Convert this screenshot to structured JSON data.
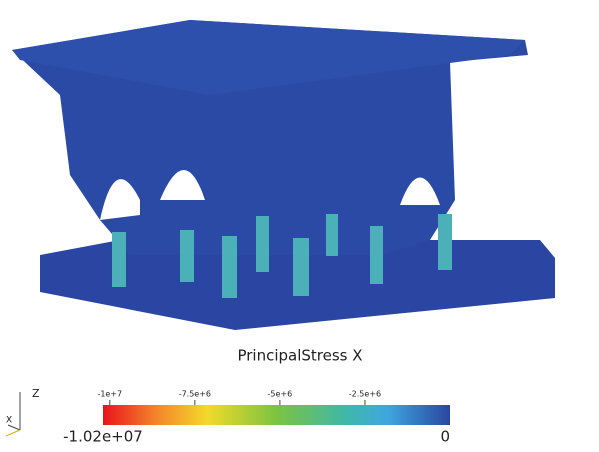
{
  "scalar_bar": {
    "title": "PrincipalStress X",
    "range": [
      {
        "value": -10200000,
        "label": "-1.02e+07"
      },
      0
    ],
    "ticks": [
      {
        "value": -10000000,
        "label": "-1e+7"
      },
      {
        "value": -7500000,
        "label": "-7.5e+6"
      },
      {
        "value": -5000000,
        "label": "-5e+6"
      },
      {
        "value": -2500000,
        "label": "-2.5e+6"
      }
    ]
  },
  "axes_triad": {
    "z": "Z",
    "x": "X"
  }
}
